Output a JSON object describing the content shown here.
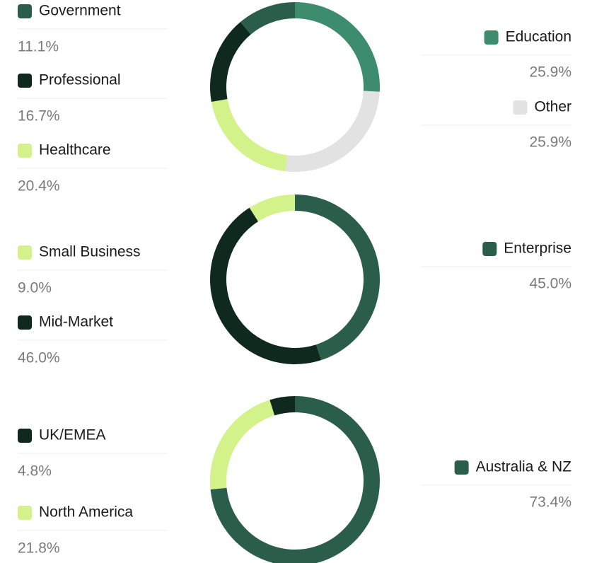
{
  "chart_data": [
    {
      "type": "donut",
      "categories": [
        "Education",
        "Other",
        "Healthcare",
        "Professional",
        "Government"
      ],
      "values": [
        25.9,
        25.9,
        20.4,
        16.7,
        11.1
      ],
      "value_labels": [
        "25.9%",
        "25.9%",
        "20.4%",
        "16.7%",
        "11.1%"
      ],
      "colors": [
        "#3d8c6e",
        "#e2e2e2",
        "#d4f28a",
        "#10291f",
        "#2b5e4a"
      ]
    },
    {
      "type": "donut",
      "categories": [
        "Enterprise",
        "Mid-Market",
        "Small Business"
      ],
      "values": [
        45.0,
        46.0,
        9.0
      ],
      "value_labels": [
        "45.0%",
        "46.0%",
        "9.0%"
      ],
      "colors": [
        "#2b5e4a",
        "#10291f",
        "#d4f28a"
      ]
    },
    {
      "type": "donut",
      "categories": [
        "Australia & NZ",
        "North America",
        "UK/EMEA"
      ],
      "values": [
        73.4,
        21.8,
        4.8
      ],
      "value_labels": [
        "73.4%",
        "21.8%",
        "4.8%"
      ],
      "colors": [
        "#2b5e4a",
        "#d4f28a",
        "#10291f"
      ]
    }
  ]
}
